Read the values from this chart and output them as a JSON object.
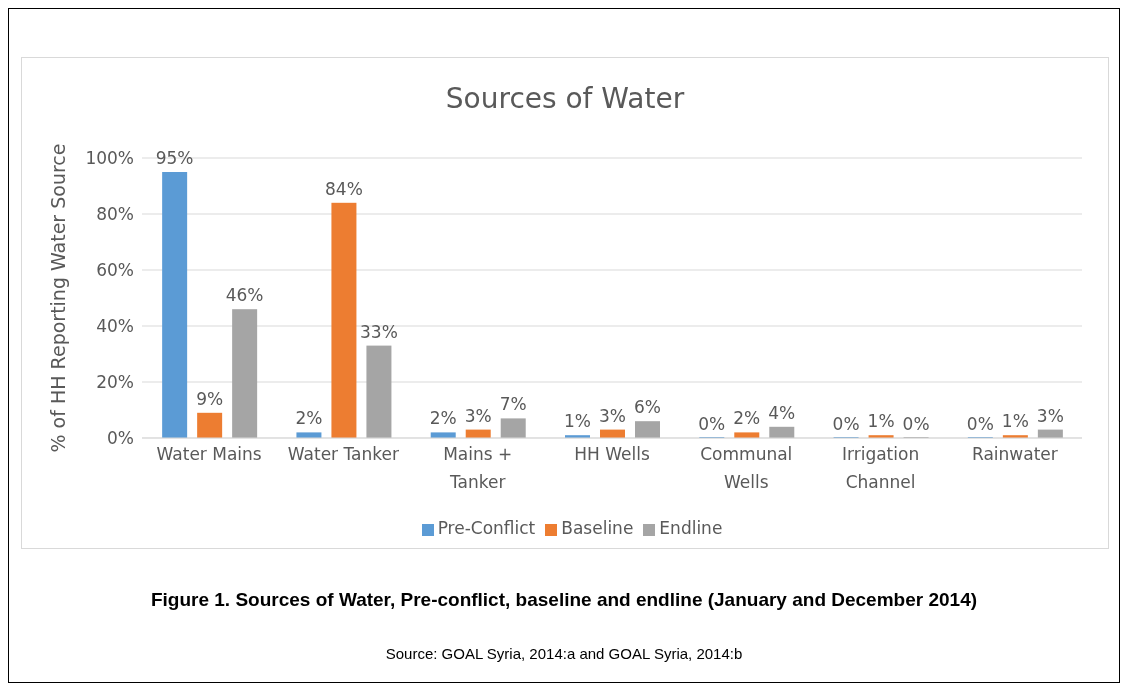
{
  "chart_data": {
    "type": "bar",
    "title": "Sources of Water",
    "ylabel": "% of HH Reporting Water Source",
    "categories": [
      "Water Mains",
      "Water Tanker",
      "Mains + Tanker",
      "HH Wells",
      "Communal Wells",
      "Irrigation Channel",
      "Rainwater"
    ],
    "series": [
      {
        "name": "Pre-Conflict",
        "color": "#5b9bd5",
        "values": [
          95,
          2,
          2,
          1,
          0,
          0,
          0
        ],
        "value_labels": [
          "95%",
          "2%",
          "2%",
          "1%",
          "0%",
          "0%",
          "0%"
        ]
      },
      {
        "name": "Baseline",
        "color": "#ed7d31",
        "values": [
          9,
          84,
          3,
          3,
          2,
          1,
          1
        ],
        "value_labels": [
          "9%",
          "84%",
          "3%",
          "3%",
          "2%",
          "1%",
          "1%"
        ]
      },
      {
        "name": "Endline",
        "color": "#a5a5a5",
        "values": [
          46,
          33,
          7,
          6,
          4,
          0,
          3
        ],
        "value_labels": [
          "46%",
          "33%",
          "7%",
          "6%",
          "4%",
          "0%",
          "3%"
        ]
      }
    ],
    "ylim": [
      0,
      100
    ],
    "yticks": [
      {
        "value": 0,
        "label": "0%"
      },
      {
        "value": 20,
        "label": "20%"
      },
      {
        "value": 40,
        "label": "40%"
      },
      {
        "value": 60,
        "label": "60%"
      },
      {
        "value": 80,
        "label": "80%"
      },
      {
        "value": 100,
        "label": "100%"
      }
    ],
    "grid": "y",
    "legend": "bottom",
    "annotations": [
      "Figure 1. Sources of Water, Pre-conflict, baseline and endline (January and December 2014)",
      "Source: GOAL Syria, 2014:a and GOAL Syria, 2014:b"
    ]
  }
}
